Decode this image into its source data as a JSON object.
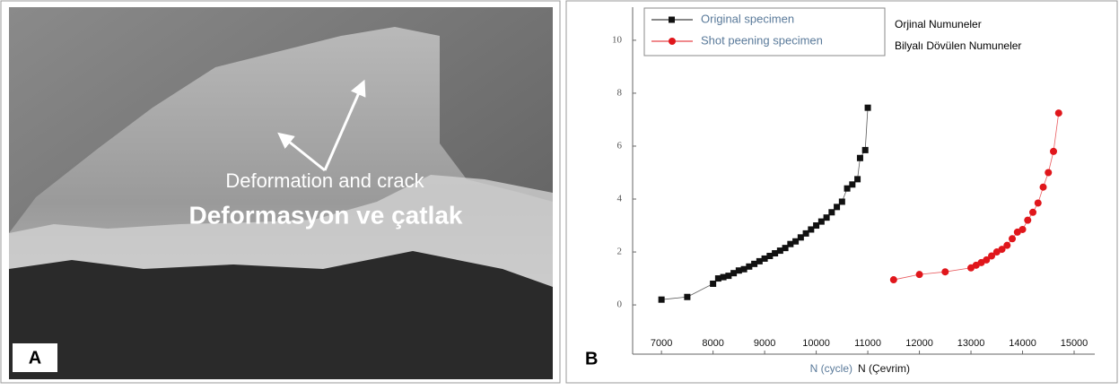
{
  "panel_a": {
    "label": "A",
    "annotation_en": "Deformation and crack",
    "annotation_tr": "Deformasyon ve çatlak"
  },
  "chart_data": {
    "type": "scatter",
    "panel_label": "B",
    "x_label": "N (cycle)",
    "x_label_tr": "N (Çevrim)",
    "legend_tr": [
      "Orjinal Numuneler",
      "Bilyalı Dövülen Numuneler"
    ],
    "xlim": [
      6180,
      15400
    ],
    "xticks": [
      7000,
      8000,
      9000,
      10000,
      11000,
      12000,
      13000,
      14000,
      15000
    ],
    "ylim": [
      -1.86,
      11.25
    ],
    "yticks": [
      0,
      2,
      4,
      6,
      8,
      10
    ],
    "series": [
      {
        "name": "Original specimen",
        "color": "#111111",
        "marker": "square",
        "x": [
          7000,
          7500,
          8000,
          8100,
          8200,
          8300,
          8400,
          8500,
          8600,
          8700,
          8800,
          8900,
          9000,
          9100,
          9200,
          9300,
          9400,
          9500,
          9600,
          9700,
          9800,
          9900,
          10000,
          10100,
          10200,
          10300,
          10400,
          10500,
          10600,
          10700,
          10800,
          10850,
          10950,
          11000
        ],
        "values": [
          0.2,
          0.3,
          0.8,
          1.0,
          1.05,
          1.1,
          1.2,
          1.3,
          1.35,
          1.45,
          1.55,
          1.65,
          1.75,
          1.85,
          1.95,
          2.05,
          2.15,
          2.3,
          2.4,
          2.55,
          2.7,
          2.85,
          3.0,
          3.15,
          3.3,
          3.5,
          3.7,
          3.9,
          4.4,
          4.55,
          4.75,
          5.55,
          5.85,
          7.45
        ]
      },
      {
        "name": "Shot peening specimen",
        "color": "#e0161b",
        "marker": "circle",
        "x": [
          11500,
          12000,
          12500,
          13000,
          13100,
          13200,
          13300,
          13400,
          13500,
          13600,
          13700,
          13800,
          13900,
          14000,
          14100,
          14200,
          14300,
          14400,
          14500,
          14600,
          14700
        ],
        "values": [
          0.95,
          1.15,
          1.25,
          1.4,
          1.5,
          1.6,
          1.7,
          1.85,
          2.0,
          2.1,
          2.25,
          2.5,
          2.75,
          2.85,
          3.2,
          3.5,
          3.85,
          4.45,
          5.0,
          5.8,
          7.25
        ]
      }
    ]
  }
}
